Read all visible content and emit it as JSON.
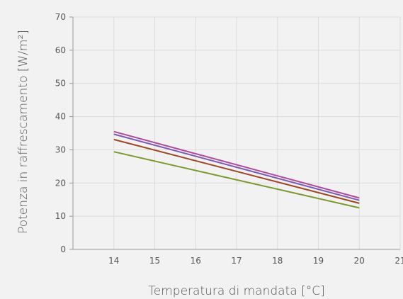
{
  "chart_data": {
    "type": "line",
    "xlabel": "Temperatura di mandata [°C]",
    "ylabel": "Potenza in raffrescamento [W/m²]",
    "xlim": [
      13,
      21
    ],
    "ylim": [
      0,
      70
    ],
    "x_ticks": [
      14,
      15,
      16,
      17,
      18,
      19,
      20,
      21
    ],
    "y_ticks": [
      0,
      10,
      20,
      30,
      40,
      50,
      60,
      70
    ],
    "grid": true,
    "legend": "none",
    "colors": {
      "grid": "#dcdcdc",
      "axis": "#9a9a9a",
      "background": "#f2f2f2"
    },
    "series": [
      {
        "color": "#b04a9e",
        "x": [
          14,
          20
        ],
        "y": [
          35.5,
          15.5
        ]
      },
      {
        "color": "#7a5ab8",
        "x": [
          14,
          20
        ],
        "y": [
          34.7,
          14.8
        ]
      },
      {
        "color": "#a0461e",
        "x": [
          14,
          20
        ],
        "y": [
          33.1,
          13.9
        ]
      },
      {
        "color": "#7a9a2a",
        "x": [
          14,
          20
        ],
        "y": [
          29.4,
          12.5
        ]
      }
    ]
  }
}
